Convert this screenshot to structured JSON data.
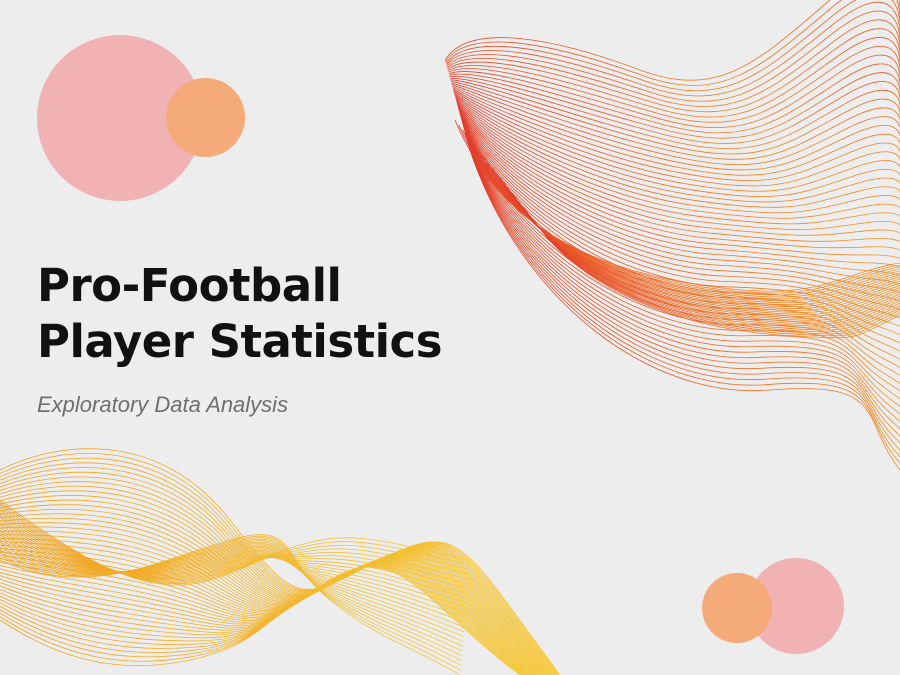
{
  "slide": {
    "title_line1": "Pro-Football",
    "title_line2": "Player Statistics",
    "subtitle": "Exploratory Data Analysis"
  },
  "colors": {
    "background": "#ededed",
    "pink": "#f0b2b2",
    "peach": "#f5ab79",
    "wave_red": "#e03a2a",
    "wave_orange": "#f08a24",
    "wave_yellow": "#f2c12e",
    "title_text": "#111111",
    "subtitle_text": "#6f6f6f"
  }
}
